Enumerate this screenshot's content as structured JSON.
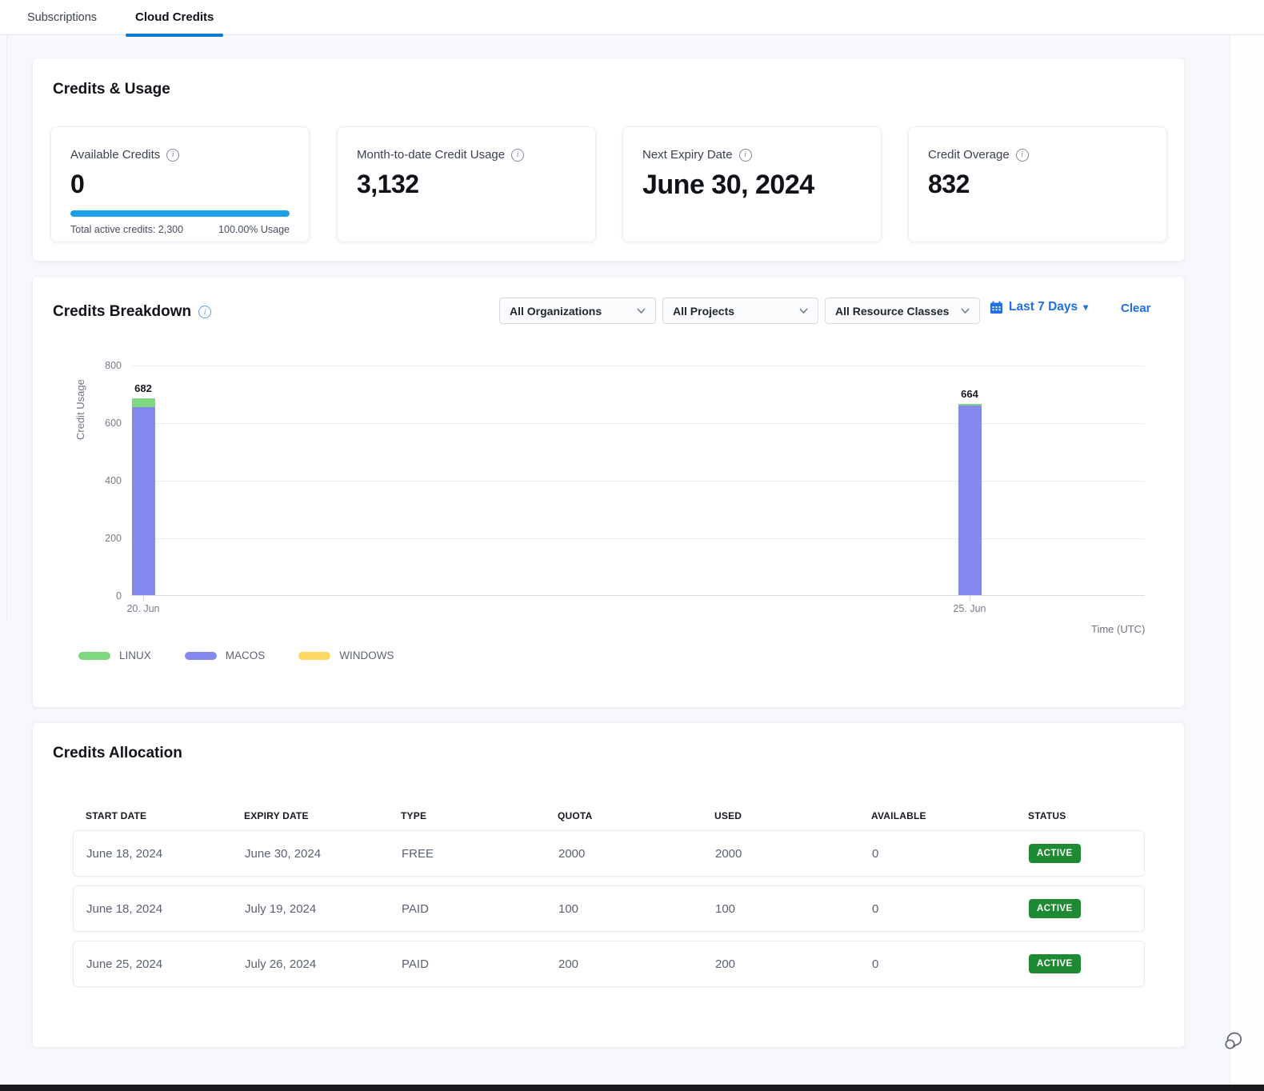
{
  "tabs": [
    {
      "label": "Subscriptions",
      "active": false
    },
    {
      "label": "Cloud Credits",
      "active": true
    }
  ],
  "credits_usage": {
    "title": "Credits & Usage",
    "cards": [
      {
        "label": "Available Credits",
        "value": "0",
        "footer_left": "Total active credits: 2,300",
        "footer_right": "100.00% Usage",
        "progress_pct": 100
      },
      {
        "label": "Month-to-date Credit Usage",
        "value": "3,132"
      },
      {
        "label": "Next Expiry Date",
        "value": "June 30, 2024"
      },
      {
        "label": "Credit Overage",
        "value": "832"
      }
    ]
  },
  "credits_breakdown": {
    "title": "Credits Breakdown",
    "filters": {
      "organizations": "All Organizations",
      "projects": "All Projects",
      "resource_classes": "All Resource Classes",
      "date_range": "Last 7 Days",
      "clear": "Clear"
    }
  },
  "chart_data": {
    "type": "bar",
    "stacked": true,
    "categories": [
      "20. Jun",
      "25. Jun"
    ],
    "series": [
      {
        "name": "LINUX",
        "values": [
          28,
          5
        ],
        "color": "#7fd77f"
      },
      {
        "name": "MACOS",
        "values": [
          654,
          659
        ],
        "color": "#8588ef"
      },
      {
        "name": "WINDOWS",
        "values": [
          0,
          0
        ],
        "color": "#fcd862"
      }
    ],
    "totals": [
      682,
      664
    ],
    "title": "",
    "xlabel": "Time (UTC)",
    "ylabel": "Credit Usage",
    "ylim": [
      0,
      800
    ],
    "yticks": [
      0,
      200,
      400,
      600,
      800
    ],
    "grid": true,
    "legend_position": "bottom-left"
  },
  "credits_allocation": {
    "title": "Credits Allocation",
    "columns": [
      "START DATE",
      "EXPIRY DATE",
      "TYPE",
      "QUOTA",
      "USED",
      "AVAILABLE",
      "STATUS"
    ],
    "rows": [
      {
        "start_date": "June 18, 2024",
        "expiry_date": "June 30, 2024",
        "type": "FREE",
        "quota": "2000",
        "used": "2000",
        "available": "0",
        "status": "ACTIVE"
      },
      {
        "start_date": "June 18, 2024",
        "expiry_date": "July 19, 2024",
        "type": "PAID",
        "quota": "100",
        "used": "100",
        "available": "0",
        "status": "ACTIVE"
      },
      {
        "start_date": "June 25, 2024",
        "expiry_date": "July 26, 2024",
        "type": "PAID",
        "quota": "200",
        "used": "200",
        "available": "0",
        "status": "ACTIVE"
      }
    ]
  },
  "icons": {
    "info": "circled-i",
    "calendar": "calendar-grid",
    "dropdown_caret": "▾",
    "chevron_down": "v-chevron",
    "feedback": "speech-bubbles"
  },
  "colors": {
    "accent_blue": "#1e6fe8",
    "tab_underline": "#0d7bca",
    "progress_blue": "#1b9fe8",
    "badge_green": "#1f8a34",
    "linux_green": "#7fd77f",
    "macos_purple": "#8588ef",
    "windows_yellow": "#fcd862"
  }
}
